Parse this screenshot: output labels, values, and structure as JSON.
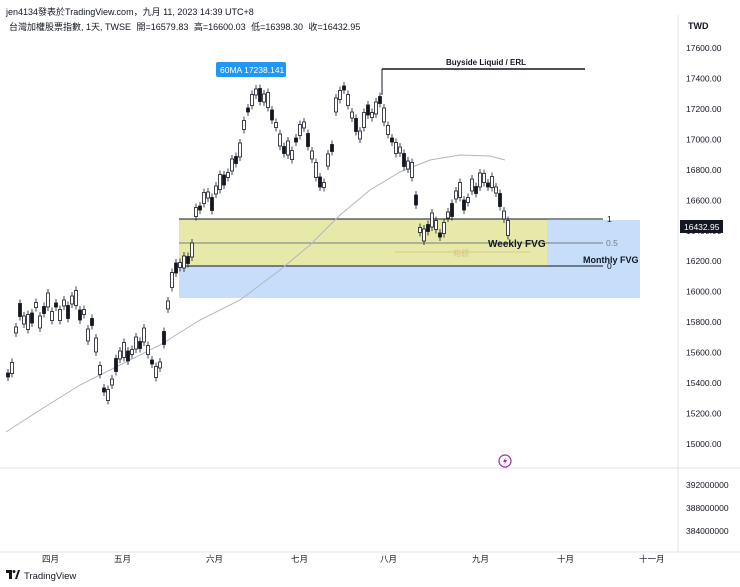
{
  "header": {
    "publish_line": "jen4134發表於TradingView.com，九月 11, 2023 14:39 UTC+8",
    "symbol": "台灣加權股票指數, 1天, TWSE",
    "open": "開=16579.83",
    "high": "高=16600.03",
    "low": "低=16398.30",
    "close": "收=16432.95"
  },
  "currency": "TWD",
  "price_axis": {
    "ticks": [
      "17600.00",
      "17400.00",
      "17200.00",
      "17000.00",
      "16800.00",
      "16600.00",
      "16400.00",
      "16200.00",
      "16000.00",
      "15800.00",
      "15600.00",
      "15400.00",
      "15200.00",
      "15000.00"
    ],
    "tick_values": [
      17600,
      17400,
      17200,
      17000,
      16800,
      16600,
      16400,
      16200,
      16000,
      15800,
      15600,
      15400,
      15200,
      15000
    ],
    "last_price": "16432.95"
  },
  "volume_axis": {
    "ticks": [
      "392000000",
      "388000000",
      "384000000"
    ]
  },
  "time_axis": {
    "labels": [
      "四月",
      "五月",
      "六月",
      "七月",
      "八月",
      "九月",
      "十月",
      "十一月"
    ]
  },
  "annotations": {
    "ma_label": "60MA 17238.141",
    "buyside": "Buyside Liquid / ERL",
    "weekly_fvg": "Weekly FVG",
    "monthly_fvg": "Monthly FVG",
    "fib_1": "1",
    "fib_05": "0.5",
    "fib_0": "0",
    "center_tag": "箱體"
  },
  "colors": {
    "weekly_fvg_fill": "#e6e9a8",
    "monthly_fvg_fill": "#c6defa",
    "ma_line": "#b2b5be",
    "candle": "#131722",
    "ma_label_bg": "#2196f3",
    "last_price_bg": "#131722"
  },
  "footer": {
    "brand": "TradingView"
  },
  "icons": {
    "lightning": "lightning-icon",
    "logo": "tradingview-logo-icon"
  }
}
